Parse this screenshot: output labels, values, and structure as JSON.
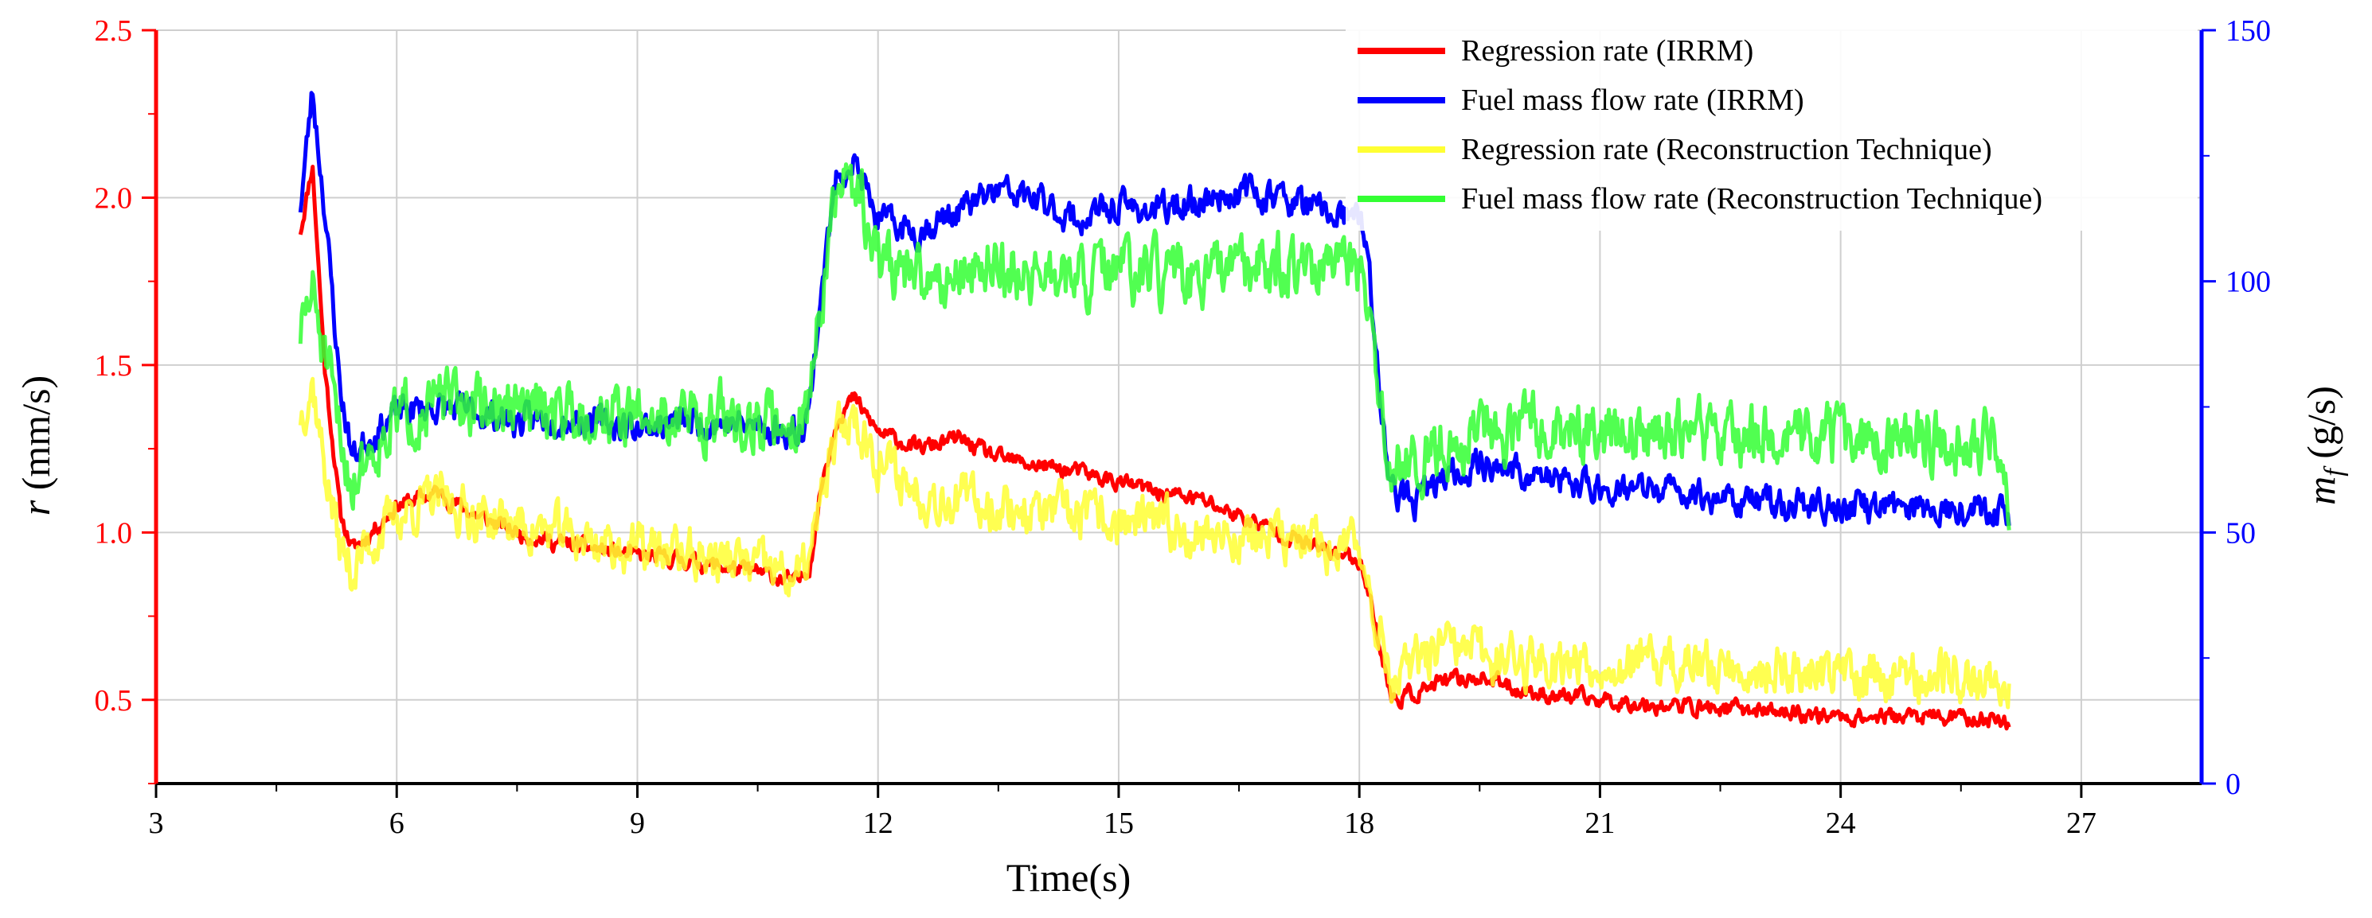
{
  "chart_data": {
    "type": "line",
    "xlabel": "Time(s)",
    "ylabel_left": {
      "symbol": "r",
      "unit": " (mm/s)"
    },
    "ylabel_right": {
      "symbol": "m",
      "subscript": "f",
      "unit": " (g/s)"
    },
    "xlim": [
      3,
      28.5
    ],
    "ylim_left": [
      0.25,
      2.5
    ],
    "ylim_right": [
      0,
      150
    ],
    "x_ticks": [
      3,
      6,
      9,
      12,
      15,
      18,
      21,
      24,
      27
    ],
    "x_tick_labels": [
      "3",
      "6",
      "9",
      "12",
      "15",
      "18",
      "21",
      "24",
      "27"
    ],
    "y_left_ticks": [
      0.5,
      1.0,
      1.5,
      2.0,
      2.5
    ],
    "y_left_tick_labels": [
      "0.5",
      "1.0",
      "1.5",
      "2.0",
      "2.5"
    ],
    "y_right_ticks": [
      0,
      50,
      100,
      150
    ],
    "y_right_tick_labels": [
      "0",
      "50",
      "100",
      "150"
    ],
    "grid": true,
    "colors": {
      "left_axis": "#ff0000",
      "right_axis": "#0000ff"
    },
    "legend_position": "top-right",
    "series": [
      {
        "name": "Regression rate (IRRM)",
        "axis": "left",
        "color": "#ff0000",
        "noise": 0.02,
        "seed": 11,
        "x": [
          4.8,
          4.95,
          5.1,
          5.3,
          5.45,
          5.6,
          6.0,
          6.5,
          7.0,
          7.5,
          8.0,
          8.5,
          9.0,
          9.5,
          10.0,
          10.5,
          11.0,
          11.15,
          11.3,
          11.5,
          11.7,
          12.0,
          12.5,
          13.0,
          13.5,
          14.0,
          14.5,
          15.0,
          15.5,
          16.0,
          16.5,
          17.0,
          17.5,
          18.0,
          18.1,
          18.2,
          18.4,
          18.7,
          19.0,
          19.5,
          20.0,
          20.5,
          21.0,
          22.0,
          23.0,
          24.0,
          25.0,
          26.0,
          26.1
        ],
        "values": [
          1.9,
          2.1,
          1.5,
          1.05,
          0.95,
          0.98,
          1.08,
          1.12,
          1.05,
          1.0,
          0.97,
          0.95,
          0.93,
          0.92,
          0.9,
          0.88,
          0.85,
          0.9,
          1.15,
          1.35,
          1.4,
          1.3,
          1.25,
          1.28,
          1.22,
          1.2,
          1.18,
          1.15,
          1.12,
          1.1,
          1.05,
          1.0,
          0.95,
          0.92,
          0.85,
          0.72,
          0.5,
          0.52,
          0.55,
          0.57,
          0.53,
          0.51,
          0.5,
          0.48,
          0.47,
          0.45,
          0.45,
          0.44,
          0.43
        ]
      },
      {
        "name": "Fuel mass flow rate (IRRM)",
        "axis": "right",
        "color": "#0000ff",
        "noise": 2.5,
        "seed": 23,
        "x": [
          4.8,
          4.95,
          5.1,
          5.3,
          5.45,
          5.6,
          6.0,
          6.5,
          7.0,
          7.5,
          8.0,
          8.5,
          9.0,
          9.5,
          10.0,
          10.5,
          11.0,
          11.15,
          11.3,
          11.5,
          11.7,
          12.0,
          12.5,
          13.0,
          13.5,
          14.0,
          14.5,
          15.0,
          15.5,
          16.0,
          16.5,
          17.0,
          17.5,
          18.0,
          18.1,
          18.2,
          18.4,
          18.7,
          19.0,
          19.5,
          20.0,
          20.5,
          21.0,
          22.0,
          23.0,
          24.0,
          25.0,
          26.0,
          26.1
        ],
        "values": [
          115,
          138,
          115,
          78,
          65,
          68,
          74,
          75,
          74,
          72,
          73,
          72,
          71,
          72,
          72,
          71,
          70,
          75,
          100,
          122,
          124,
          112,
          110,
          114,
          118,
          116,
          112,
          115,
          114,
          116,
          118,
          117,
          114,
          112,
          108,
          85,
          58,
          56,
          60,
          64,
          62,
          60,
          59,
          58,
          56,
          55,
          55,
          55,
          53
        ]
      },
      {
        "name": "Regression rate (Reconstruction Technique)",
        "axis": "left",
        "color": "#ffff33",
        "noise": 0.06,
        "seed": 37,
        "x": [
          4.8,
          4.95,
          5.1,
          5.3,
          5.45,
          5.6,
          6.0,
          6.5,
          7.0,
          7.5,
          8.0,
          8.5,
          9.0,
          9.5,
          10.0,
          10.5,
          11.0,
          11.15,
          11.3,
          11.5,
          11.7,
          12.0,
          12.5,
          13.0,
          13.5,
          14.0,
          14.5,
          15.0,
          15.5,
          16.0,
          16.5,
          17.0,
          17.5,
          18.0,
          18.1,
          18.2,
          18.4,
          18.7,
          19.0,
          19.5,
          20.0,
          20.5,
          21.0,
          22.0,
          23.0,
          24.0,
          25.0,
          26.0,
          26.1
        ],
        "values": [
          1.35,
          1.45,
          1.2,
          0.95,
          0.88,
          0.95,
          1.05,
          1.1,
          1.05,
          1.02,
          1.0,
          0.97,
          0.95,
          0.94,
          0.92,
          0.9,
          0.86,
          0.92,
          1.1,
          1.3,
          1.35,
          1.22,
          1.12,
          1.1,
          1.08,
          1.06,
          1.05,
          1.03,
          1.02,
          1.0,
          0.99,
          0.98,
          0.96,
          0.95,
          0.9,
          0.75,
          0.55,
          0.6,
          0.65,
          0.64,
          0.62,
          0.62,
          0.61,
          0.6,
          0.59,
          0.58,
          0.57,
          0.56,
          0.55
        ]
      },
      {
        "name": "Fuel mass flow rate (Reconstruction Technique)",
        "axis": "right",
        "color": "#33ff33",
        "noise": 5.0,
        "seed": 51,
        "x": [
          4.8,
          4.95,
          5.1,
          5.3,
          5.45,
          5.6,
          6.0,
          6.5,
          7.0,
          7.5,
          8.0,
          8.5,
          9.0,
          9.5,
          10.0,
          10.5,
          11.0,
          11.15,
          11.3,
          11.5,
          11.7,
          12.0,
          12.5,
          13.0,
          13.5,
          14.0,
          14.5,
          15.0,
          15.5,
          16.0,
          16.5,
          17.0,
          17.5,
          18.0,
          18.1,
          18.2,
          18.4,
          18.7,
          19.0,
          19.5,
          20.0,
          20.5,
          21.0,
          22.0,
          23.0,
          24.0,
          25.0,
          26.0,
          26.1
        ],
        "values": [
          90,
          98,
          85,
          68,
          60,
          65,
          73,
          76,
          75,
          74,
          75,
          74,
          73,
          73,
          73,
          72,
          72,
          76,
          98,
          118,
          120,
          105,
          100,
          102,
          103,
          101,
          100,
          102,
          101,
          100,
          102,
          104,
          102,
          101,
          98,
          80,
          62,
          64,
          68,
          70,
          71,
          70,
          70,
          70,
          69,
          69,
          68,
          67,
          50
        ]
      }
    ]
  }
}
